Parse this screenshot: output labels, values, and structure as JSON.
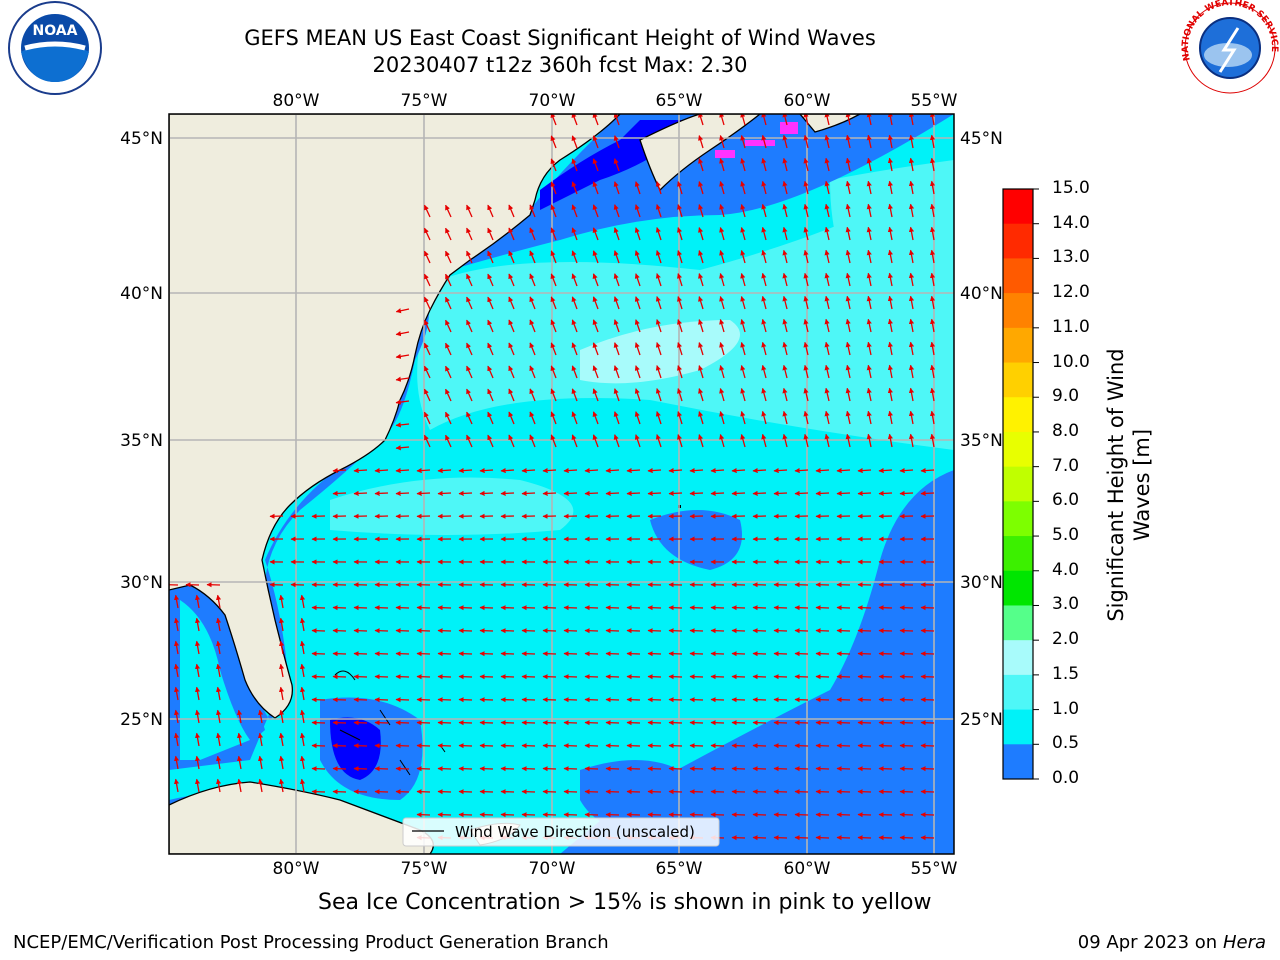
{
  "title": {
    "line1": "GEFS MEAN US East Coast Significant Height of Wind Waves",
    "line2": "20230407 t12z 360h fcst   Max: 2.30"
  },
  "map": {
    "lon_ticks": [
      "80°W",
      "75°W",
      "70°W",
      "65°W",
      "60°W",
      "55°W"
    ],
    "lat_ticks": [
      "45°N",
      "40°N",
      "35°N",
      "30°N",
      "25°N"
    ],
    "legend_label": "Wind Wave Direction (unscaled)",
    "colors": {
      "land": "#efedde",
      "band_0_05": "#0000ff",
      "band_05_10": "#1e7cff",
      "band_10_15": "#00f2f8",
      "band_15_20": "#4ef7f7",
      "band_20_30": "#a8fbfb",
      "arrows": "#e60000",
      "ice": "#ff33ff"
    }
  },
  "colorbar": {
    "title": "Significant Height of Wind Waves [m]",
    "title_line1": "Significant Height of Wind",
    "title_line2": "Waves [m]",
    "labels": [
      "15.0",
      "14.0",
      "13.0",
      "12.0",
      "11.0",
      "10.0",
      "9.0",
      "8.0",
      "7.0",
      "6.0",
      "5.0",
      "4.0",
      "3.0",
      "2.0",
      "1.5",
      "1.0",
      "0.5",
      "0.0"
    ],
    "colors": [
      "#ff0000",
      "#ff2a00",
      "#ff5a00",
      "#ff8200",
      "#ffa800",
      "#ffd000",
      "#fff200",
      "#e8ff00",
      "#c0ff00",
      "#7dff00",
      "#3cf000",
      "#00e600",
      "#55ff8a",
      "#a8fbfb",
      "#4ef7f7",
      "#00f2f8",
      "#1e7cff",
      "#0000ff"
    ]
  },
  "logos": {
    "noaa_text": "NOAA",
    "nws_text": "NATIONAL WEATHER SERVICE"
  },
  "footnote": "Sea Ice Concentration > 15% is shown in pink to yellow",
  "footer": {
    "left": "NCEP/EMC/Verification Post Processing Product Generation Branch",
    "right_date": "09 Apr 2023 on ",
    "right_host": "Hera"
  }
}
